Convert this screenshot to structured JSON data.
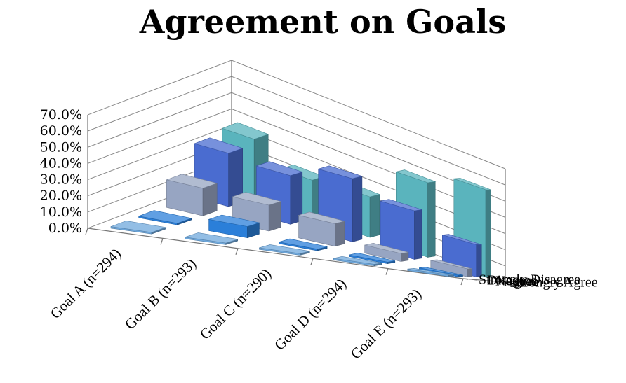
{
  "chart_data": {
    "type": "bar",
    "subtype": "3d-column",
    "title": "Agreement on Goals",
    "categories": [
      "Goal A (n=294)",
      "Goal B (n=293)",
      "Goal C (n=290)",
      "Goal D (n=294)",
      "Goal E (n=293)"
    ],
    "y_ticks": [
      "0.0%",
      "10.0%",
      "20.0%",
      "30.0%",
      "40.0%",
      "50.0%",
      "60.0%",
      "70.0%"
    ],
    "ylim": [
      0,
      70
    ],
    "grid": true,
    "series": [
      {
        "name": "Strongly Disagree",
        "color": "#6FA8DC",
        "values": [
          1.0,
          1.0,
          1.0,
          1.0,
          1.0
        ]
      },
      {
        "name": "Disagree",
        "color": "#2B7FD9",
        "values": [
          1.0,
          7.0,
          1.0,
          1.0,
          1.0
        ]
      },
      {
        "name": "Neutral",
        "color": "#97A5C2",
        "values": [
          17.0,
          16.0,
          14.0,
          5.0,
          5.0
        ]
      },
      {
        "name": "Agree",
        "color": "#4A6CD0",
        "values": [
          33.0,
          30.0,
          39.0,
          30.0,
          20.0
        ]
      },
      {
        "name": "Strongly Agree",
        "color": "#5AB4BD",
        "values": [
          36.0,
          23.0,
          25.0,
          46.0,
          54.0
        ]
      }
    ]
  }
}
